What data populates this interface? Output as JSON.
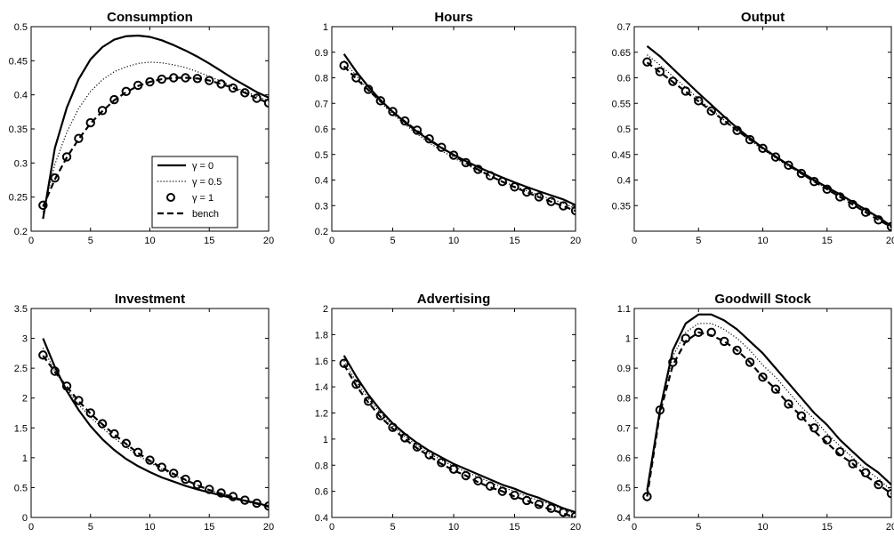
{
  "chart_data": [
    {
      "type": "line",
      "title": "Consumption",
      "xlim": [
        0,
        20
      ],
      "ylim": [
        0.2,
        0.5
      ],
      "xticks": [
        "0",
        "5",
        "10",
        "15",
        "20"
      ],
      "yticks": [
        "0.2",
        "0.25",
        "0.3",
        "0.35",
        "0.4",
        "0.45",
        "0.5"
      ],
      "x": [
        1,
        2,
        3,
        4,
        5,
        6,
        7,
        8,
        9,
        10,
        11,
        12,
        13,
        14,
        15,
        16,
        17,
        18,
        19,
        20
      ],
      "legend": {
        "position": "bottom-right",
        "entries": [
          "γ = 0",
          "γ = 0.5",
          "γ = 1",
          "bench"
        ]
      },
      "series": [
        {
          "name": "γ = 0",
          "style": "solid",
          "values": [
            0.218,
            0.322,
            0.381,
            0.423,
            0.452,
            0.47,
            0.481,
            0.486,
            0.487,
            0.485,
            0.48,
            0.473,
            0.465,
            0.456,
            0.446,
            0.435,
            0.424,
            0.414,
            0.404,
            0.396
          ]
        },
        {
          "name": "γ = 0.5",
          "style": "dotted",
          "values": [
            0.228,
            0.298,
            0.345,
            0.38,
            0.405,
            0.422,
            0.434,
            0.441,
            0.446,
            0.448,
            0.447,
            0.444,
            0.44,
            0.434,
            0.427,
            0.42,
            0.412,
            0.405,
            0.398,
            0.391
          ]
        },
        {
          "name": "γ = 1",
          "style": "circle",
          "values": [
            0.238,
            0.278,
            0.309,
            0.336,
            0.359,
            0.377,
            0.393,
            0.405,
            0.414,
            0.419,
            0.423,
            0.425,
            0.425,
            0.424,
            0.421,
            0.416,
            0.41,
            0.403,
            0.395,
            0.388
          ]
        },
        {
          "name": "bench",
          "style": "dashed",
          "values": [
            0.236,
            0.276,
            0.308,
            0.335,
            0.358,
            0.376,
            0.392,
            0.404,
            0.413,
            0.419,
            0.423,
            0.425,
            0.425,
            0.424,
            0.421,
            0.416,
            0.41,
            0.403,
            0.395,
            0.388
          ]
        }
      ]
    },
    {
      "type": "line",
      "title": "Hours",
      "xlim": [
        0,
        20
      ],
      "ylim": [
        0.2,
        1.0
      ],
      "xticks": [
        "0",
        "5",
        "10",
        "15",
        "20"
      ],
      "yticks": [
        "0.2",
        "0.3",
        "0.4",
        "0.5",
        "0.6",
        "0.7",
        "0.8",
        "0.9",
        "1"
      ],
      "x": [
        1,
        2,
        3,
        4,
        5,
        6,
        7,
        8,
        9,
        10,
        11,
        12,
        13,
        14,
        15,
        16,
        17,
        18,
        19,
        20
      ],
      "series": [
        {
          "name": "γ = 0",
          "style": "solid",
          "values": [
            0.893,
            0.825,
            0.765,
            0.713,
            0.667,
            0.626,
            0.589,
            0.556,
            0.526,
            0.499,
            0.474,
            0.451,
            0.43,
            0.41,
            0.391,
            0.373,
            0.356,
            0.34,
            0.324,
            0.302
          ]
        },
        {
          "name": "γ = 0.5",
          "style": "dotted",
          "values": [
            0.867,
            0.808,
            0.754,
            0.704,
            0.659,
            0.618,
            0.58,
            0.546,
            0.515,
            0.487,
            0.461,
            0.437,
            0.415,
            0.395,
            0.376,
            0.358,
            0.341,
            0.325,
            0.31,
            0.288
          ]
        },
        {
          "name": "γ = 1",
          "style": "circle",
          "values": [
            0.848,
            0.8,
            0.755,
            0.71,
            0.668,
            0.631,
            0.595,
            0.561,
            0.528,
            0.497,
            0.468,
            0.442,
            0.417,
            0.394,
            0.373,
            0.353,
            0.334,
            0.316,
            0.299,
            0.28
          ]
        },
        {
          "name": "bench",
          "style": "dashed",
          "values": [
            0.845,
            0.797,
            0.752,
            0.708,
            0.666,
            0.629,
            0.593,
            0.559,
            0.527,
            0.496,
            0.467,
            0.441,
            0.416,
            0.393,
            0.372,
            0.352,
            0.333,
            0.315,
            0.298,
            0.279
          ]
        }
      ]
    },
    {
      "type": "line",
      "title": "Output",
      "xlim": [
        0,
        20
      ],
      "ylim": [
        0.3,
        0.7
      ],
      "xticks": [
        "0",
        "5",
        "10",
        "15",
        "20"
      ],
      "yticks": [
        "0.35",
        "0.4",
        "0.45",
        "0.5",
        "0.55",
        "0.6",
        "0.65",
        "0.7"
      ],
      "x": [
        1,
        2,
        3,
        4,
        5,
        6,
        7,
        8,
        9,
        10,
        11,
        12,
        13,
        14,
        15,
        16,
        17,
        18,
        19,
        20
      ],
      "series": [
        {
          "name": "γ = 0",
          "style": "solid",
          "values": [
            0.662,
            0.642,
            0.618,
            0.594,
            0.57,
            0.547,
            0.524,
            0.502,
            0.482,
            0.463,
            0.446,
            0.43,
            0.415,
            0.4,
            0.386,
            0.372,
            0.357,
            0.342,
            0.327,
            0.31
          ]
        },
        {
          "name": "γ = 0.5",
          "style": "dotted",
          "values": [
            0.645,
            0.625,
            0.603,
            0.581,
            0.559,
            0.538,
            0.517,
            0.497,
            0.478,
            0.46,
            0.443,
            0.427,
            0.412,
            0.397,
            0.383,
            0.369,
            0.355,
            0.34,
            0.325,
            0.309
          ]
        },
        {
          "name": "γ = 1",
          "style": "circle",
          "values": [
            0.631,
            0.612,
            0.593,
            0.574,
            0.555,
            0.535,
            0.516,
            0.497,
            0.479,
            0.462,
            0.445,
            0.429,
            0.413,
            0.397,
            0.382,
            0.367,
            0.352,
            0.337,
            0.322,
            0.309
          ]
        },
        {
          "name": "bench",
          "style": "dashed",
          "values": [
            0.63,
            0.611,
            0.592,
            0.573,
            0.554,
            0.535,
            0.516,
            0.497,
            0.479,
            0.462,
            0.445,
            0.429,
            0.413,
            0.397,
            0.382,
            0.367,
            0.352,
            0.337,
            0.322,
            0.308
          ]
        }
      ]
    },
    {
      "type": "line",
      "title": "Investment",
      "xlim": [
        0,
        20
      ],
      "ylim": [
        0,
        3.5
      ],
      "xticks": [
        "0",
        "5",
        "10",
        "15",
        "20"
      ],
      "yticks": [
        "0",
        "0.5",
        "1",
        "1.5",
        "2",
        "2.5",
        "3",
        "3.5"
      ],
      "x": [
        1,
        2,
        3,
        4,
        5,
        6,
        7,
        8,
        9,
        10,
        11,
        12,
        13,
        14,
        15,
        16,
        17,
        18,
        19,
        20
      ],
      "series": [
        {
          "name": "γ = 0",
          "style": "solid",
          "values": [
            3.0,
            2.52,
            2.12,
            1.8,
            1.53,
            1.31,
            1.13,
            0.98,
            0.86,
            0.76,
            0.67,
            0.6,
            0.53,
            0.47,
            0.42,
            0.37,
            0.32,
            0.28,
            0.24,
            0.19
          ]
        },
        {
          "name": "γ = 0.5",
          "style": "dotted",
          "values": [
            2.84,
            2.45,
            2.15,
            1.89,
            1.68,
            1.5,
            1.33,
            1.18,
            1.04,
            0.92,
            0.81,
            0.71,
            0.62,
            0.54,
            0.46,
            0.4,
            0.34,
            0.29,
            0.24,
            0.19
          ]
        },
        {
          "name": "γ = 1",
          "style": "circle",
          "values": [
            2.72,
            2.45,
            2.2,
            1.96,
            1.75,
            1.57,
            1.4,
            1.24,
            1.09,
            0.96,
            0.84,
            0.74,
            0.64,
            0.55,
            0.47,
            0.41,
            0.35,
            0.29,
            0.24,
            0.19
          ]
        },
        {
          "name": "bench",
          "style": "dashed",
          "values": [
            2.71,
            2.44,
            2.19,
            1.95,
            1.74,
            1.56,
            1.39,
            1.23,
            1.08,
            0.95,
            0.83,
            0.73,
            0.63,
            0.54,
            0.46,
            0.4,
            0.34,
            0.28,
            0.23,
            0.18
          ]
        }
      ]
    },
    {
      "type": "line",
      "title": "Advertising",
      "xlim": [
        0,
        20
      ],
      "ylim": [
        0.4,
        2.0
      ],
      "xticks": [
        "0",
        "5",
        "10",
        "15",
        "20"
      ],
      "yticks": [
        "0.4",
        "0.6",
        "0.8",
        "1",
        "1.2",
        "1.4",
        "1.6",
        "1.8",
        "2"
      ],
      "x": [
        1,
        2,
        3,
        4,
        5,
        6,
        7,
        8,
        9,
        10,
        11,
        12,
        13,
        14,
        15,
        16,
        17,
        18,
        19,
        20
      ],
      "series": [
        {
          "name": "γ = 0",
          "style": "solid",
          "values": [
            1.64,
            1.48,
            1.34,
            1.22,
            1.12,
            1.04,
            0.97,
            0.91,
            0.86,
            0.81,
            0.77,
            0.73,
            0.69,
            0.65,
            0.62,
            0.58,
            0.55,
            0.51,
            0.47,
            0.44
          ]
        },
        {
          "name": "γ = 0.5",
          "style": "dotted",
          "values": [
            1.6,
            1.44,
            1.31,
            1.2,
            1.1,
            1.02,
            0.95,
            0.89,
            0.84,
            0.79,
            0.75,
            0.71,
            0.67,
            0.63,
            0.6,
            0.56,
            0.53,
            0.5,
            0.46,
            0.43
          ]
        },
        {
          "name": "γ = 1",
          "style": "circle",
          "values": [
            1.58,
            1.42,
            1.29,
            1.18,
            1.09,
            1.01,
            0.94,
            0.88,
            0.82,
            0.77,
            0.72,
            0.68,
            0.64,
            0.6,
            0.57,
            0.53,
            0.5,
            0.47,
            0.44,
            0.41
          ]
        },
        {
          "name": "bench",
          "style": "dashed",
          "values": [
            1.57,
            1.41,
            1.28,
            1.17,
            1.08,
            1.0,
            0.93,
            0.87,
            0.81,
            0.76,
            0.72,
            0.67,
            0.63,
            0.6,
            0.56,
            0.53,
            0.49,
            0.46,
            0.43,
            0.4
          ]
        }
      ]
    },
    {
      "type": "line",
      "title": "Goodwill Stock",
      "xlim": [
        0,
        20
      ],
      "ylim": [
        0.4,
        1.1
      ],
      "xticks": [
        "0",
        "5",
        "10",
        "15",
        "20"
      ],
      "yticks": [
        "0.4",
        "0.5",
        "0.6",
        "0.7",
        "0.8",
        "0.9",
        "1",
        "1.1"
      ],
      "x": [
        1,
        2,
        3,
        4,
        5,
        6,
        7,
        8,
        9,
        10,
        11,
        12,
        13,
        14,
        15,
        16,
        17,
        18,
        19,
        20
      ],
      "series": [
        {
          "name": "γ = 0",
          "style": "solid",
          "values": [
            0.49,
            0.76,
            0.96,
            1.05,
            1.08,
            1.08,
            1.06,
            1.03,
            0.99,
            0.95,
            0.9,
            0.85,
            0.8,
            0.75,
            0.71,
            0.66,
            0.62,
            0.58,
            0.55,
            0.51
          ]
        },
        {
          "name": "γ = 0.5",
          "style": "dotted",
          "values": [
            0.48,
            0.76,
            0.94,
            1.02,
            1.05,
            1.05,
            1.03,
            1.0,
            0.96,
            0.91,
            0.87,
            0.82,
            0.77,
            0.73,
            0.68,
            0.64,
            0.6,
            0.56,
            0.53,
            0.49
          ]
        },
        {
          "name": "γ = 1",
          "style": "circle",
          "values": [
            0.47,
            0.76,
            0.92,
            1.0,
            1.02,
            1.02,
            0.99,
            0.96,
            0.92,
            0.87,
            0.83,
            0.78,
            0.74,
            0.7,
            0.66,
            0.62,
            0.58,
            0.55,
            0.51,
            0.48
          ]
        },
        {
          "name": "bench",
          "style": "dashed",
          "values": [
            0.47,
            0.75,
            0.91,
            0.99,
            1.02,
            1.01,
            0.99,
            0.96,
            0.92,
            0.87,
            0.83,
            0.78,
            0.74,
            0.69,
            0.65,
            0.61,
            0.58,
            0.54,
            0.51,
            0.48
          ]
        }
      ]
    }
  ]
}
